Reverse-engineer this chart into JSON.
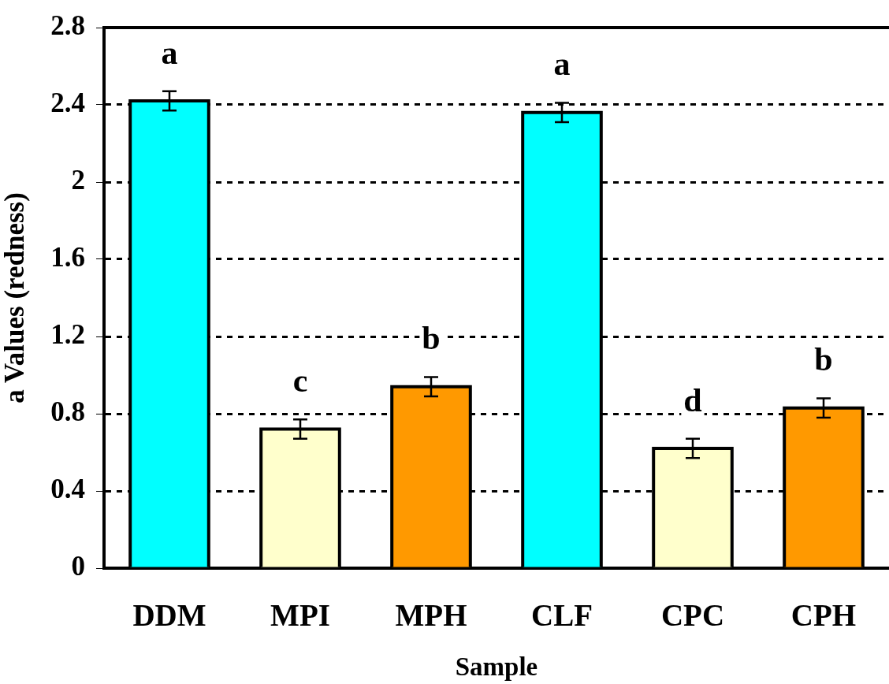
{
  "chart_data": {
    "type": "bar",
    "xlabel": "Sample",
    "ylabel": "a Values (redness)",
    "categories": [
      "DDM",
      "MPI",
      "MPH",
      "CLF",
      "CPC",
      "CPH"
    ],
    "values": [
      2.42,
      0.72,
      0.94,
      2.36,
      0.62,
      0.83
    ],
    "colors": [
      "#00ffff",
      "#ffffcc",
      "#ff9900",
      "#00ffff",
      "#ffffcc",
      "#ff9900"
    ],
    "errors": [
      0.05,
      0.05,
      0.05,
      0.05,
      0.05,
      0.05
    ],
    "value_labels": [
      "a",
      "c",
      "b",
      "a",
      "d",
      "b"
    ],
    "ylim": [
      0,
      2.8
    ],
    "yticks": [
      0,
      0.4,
      0.8,
      1.2,
      1.6,
      2,
      2.4,
      2.8
    ],
    "grid": "y"
  }
}
